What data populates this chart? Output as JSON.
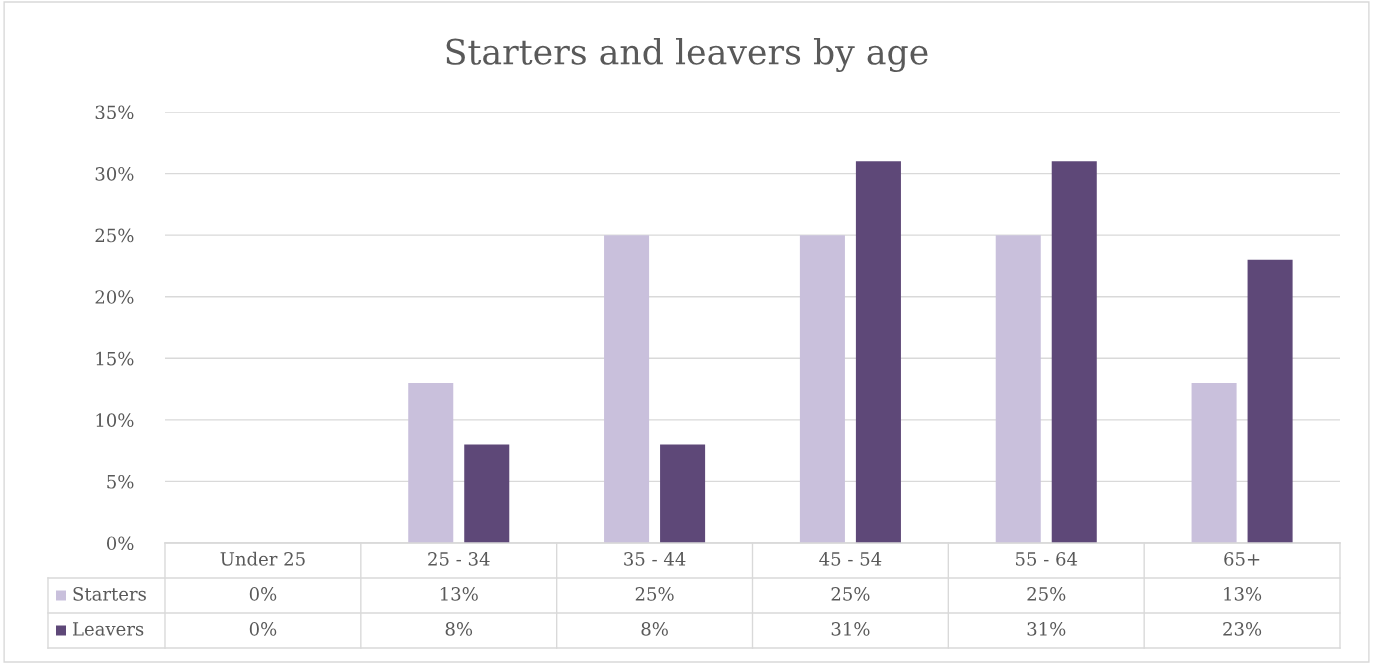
{
  "chart_data": {
    "type": "bar",
    "title": "Starters and leavers by age",
    "categories": [
      "Under 25",
      "25 - 34",
      "35 - 44",
      "45 - 54",
      "55 - 64",
      "65+"
    ],
    "series": [
      {
        "name": "Starters",
        "color": "#c9c0dc",
        "values": [
          0,
          13,
          25,
          25,
          25,
          13
        ],
        "value_labels": [
          "0%",
          "13%",
          "25%",
          "25%",
          "25%",
          "13%"
        ]
      },
      {
        "name": "Leavers",
        "color": "#5e4878",
        "values": [
          0,
          8,
          8,
          31,
          31,
          23
        ],
        "value_labels": [
          "0%",
          "8%",
          "8%",
          "31%",
          "31%",
          "23%"
        ]
      }
    ],
    "ylim": [
      0,
      35
    ],
    "yticks": [
      {
        "value": 0,
        "label": "0%"
      },
      {
        "value": 5,
        "label": "5%"
      },
      {
        "value": 10,
        "label": "10%"
      },
      {
        "value": 15,
        "label": "15%"
      },
      {
        "value": 20,
        "label": "20%"
      },
      {
        "value": 25,
        "label": "25%"
      },
      {
        "value": 30,
        "label": "30%"
      },
      {
        "value": 35,
        "label": "35%"
      }
    ],
    "grid": "y",
    "legend": "bottom"
  }
}
